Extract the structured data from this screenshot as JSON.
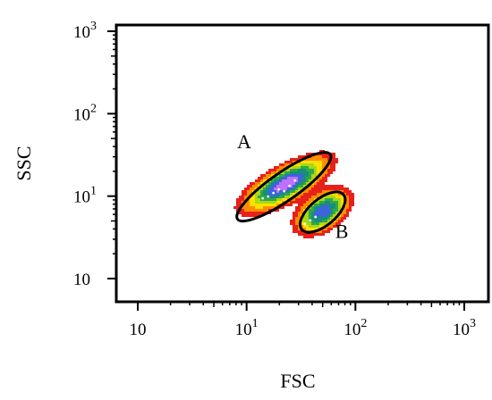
{
  "chart_data": {
    "type": "density-scatter",
    "title": "",
    "xlabel": "FSC",
    "ylabel": "SSC",
    "x_scale": "log",
    "y_scale": "log",
    "xlim": [
      1,
      1000
    ],
    "ylim": [
      1,
      1000
    ],
    "x_ticks": [
      {
        "value": 1,
        "base": "10",
        "exp": ""
      },
      {
        "value": 10,
        "base": "10",
        "exp": "1"
      },
      {
        "value": 100,
        "base": "10",
        "exp": "2"
      },
      {
        "value": 1000,
        "base": "10",
        "exp": "3"
      }
    ],
    "y_ticks": [
      {
        "value": 1,
        "base": "10",
        "exp": ""
      },
      {
        "value": 10,
        "base": "10",
        "exp": "1"
      },
      {
        "value": 100,
        "base": "10",
        "exp": "2"
      },
      {
        "value": 1000,
        "base": "10",
        "exp": "3"
      }
    ],
    "grid": false,
    "colormap": [
      "#e8201a",
      "#ff8c00",
      "#ffe000",
      "#a8d818",
      "#2fa848",
      "#1a8c7c",
      "#3c64dc",
      "#c070ff"
    ],
    "clusters": [
      {
        "name": "A",
        "center": [
          23,
          14
        ],
        "sx": 0.19,
        "sy": 0.16,
        "rho": 0.72,
        "weight": 1.0
      },
      {
        "name": "B",
        "center": [
          50,
          6.5
        ],
        "sx": 0.12,
        "sy": 0.13,
        "rho": 0.45,
        "weight": 0.85
      }
    ],
    "gates": [
      {
        "name": "A",
        "shape": "ellipse",
        "center": [
          22,
          13
        ],
        "semi_axes_decades": [
          0.52,
          0.17
        ],
        "angle_deg": 35
      },
      {
        "name": "B",
        "shape": "ellipse",
        "center": [
          50,
          6.4
        ],
        "semi_axes_decades": [
          0.25,
          0.16
        ],
        "angle_deg": 40
      }
    ],
    "annotations": [
      {
        "text": "A",
        "x": 9.5,
        "y": 38
      },
      {
        "text": "B",
        "x": 75,
        "y": 3.1
      }
    ]
  }
}
